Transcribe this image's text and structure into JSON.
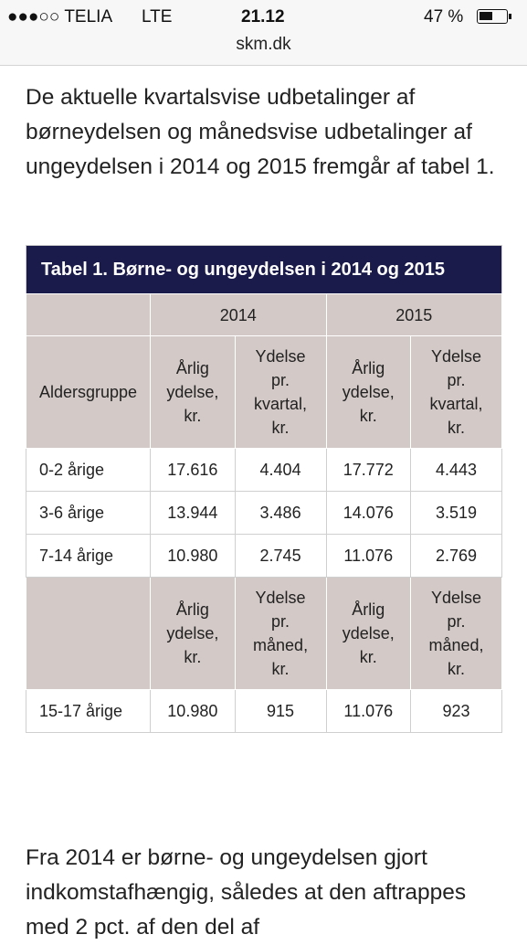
{
  "status_bar": {
    "carrier": "●●●○○ TELIA",
    "network": "LTE",
    "time": "21.12",
    "battery": "47 %"
  },
  "address_bar": {
    "url": "skm.dk"
  },
  "intro": "De aktuelle kvartalsvise udbetalinger af børneydelsen og månedsvise udbetalinger af ungeydelsen i 2014 og 2015 fremgår af tabel 1.",
  "table": {
    "title": "Tabel 1. Børne- og ungeydelsen i 2014 og 2015",
    "years": [
      "2014",
      "2015"
    ],
    "header": [
      "Aldersgruppe",
      "Årlig ydelse, kr.",
      "Ydelse pr. kvartal, kr.",
      "Årlig ydelse, kr.",
      "Ydelse pr. kvartal, kr."
    ],
    "rows": [
      [
        "0-2 årige",
        "17.616",
        "4.404",
        "17.772",
        "4.443"
      ],
      [
        "3-6 årige",
        "13.944",
        "3.486",
        "14.076",
        "3.519"
      ],
      [
        "7-14 årige",
        "10.980",
        "2.745",
        "11.076",
        "2.769"
      ]
    ],
    "header2": [
      "Årlig ydelse, kr.",
      "Ydelse pr. måned, kr.",
      "Årlig ydelse, kr.",
      "Ydelse pr. måned, kr."
    ],
    "rows2": [
      [
        "15-17 årige",
        "10.980",
        "915",
        "11.076",
        "923"
      ]
    ]
  },
  "outro": "Fra 2014 er børne- og ungeydelsen gjort indkomstafhængig, således at den aftrappes med 2 pct. af den del af"
}
